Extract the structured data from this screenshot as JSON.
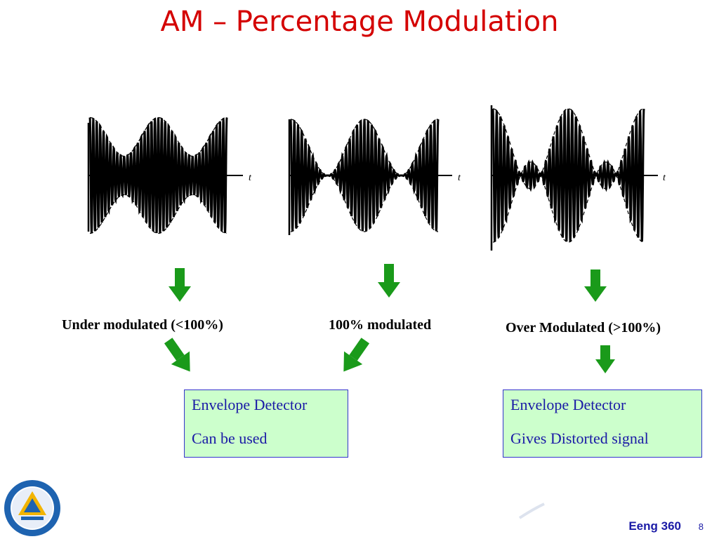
{
  "slide": {
    "title": "AM – Percentage Modulation",
    "footer": "Eeng 360",
    "page_number": "8"
  },
  "waveforms": [
    {
      "label": "t",
      "modulation_index": 0.5
    },
    {
      "label": "t",
      "modulation_index": 1.0
    },
    {
      "label": "t",
      "modulation_index": 1.5
    }
  ],
  "captions": {
    "under": "Under modulated (<100%)",
    "full": "100% modulated",
    "over": "Over Modulated (>100%)"
  },
  "boxes": {
    "left": {
      "line1": "Envelope Detector",
      "line2": "Can be used"
    },
    "right": {
      "line1": "Envelope Detector",
      "line2": "Gives Distorted signal"
    }
  },
  "colors": {
    "title": "#d40000",
    "arrow": "#1a9a1a",
    "box_fill": "#ccffcc",
    "box_border": "#3333cc",
    "box_text": "#1a1aa6"
  },
  "icons": [
    "university-logo-icon",
    "down-arrow-icon"
  ]
}
